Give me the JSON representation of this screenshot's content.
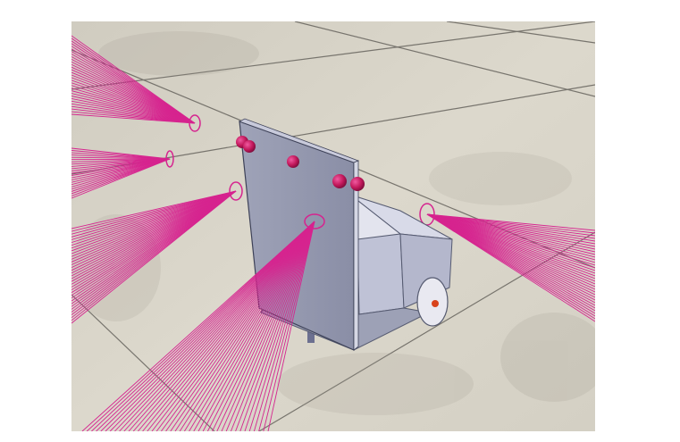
{
  "scene": {
    "background_color": "#ffffff",
    "floor_color": "#d9d5c9",
    "tile_line_color": "#6f6c66",
    "beam_color": "#d6248f",
    "sensor_color": "#c2185b",
    "panel_color": "#8c91a8",
    "body_color": "#c6c9dc",
    "wheel_color": "#e6e7ee",
    "wheel_hub_color": "#d8431c"
  }
}
